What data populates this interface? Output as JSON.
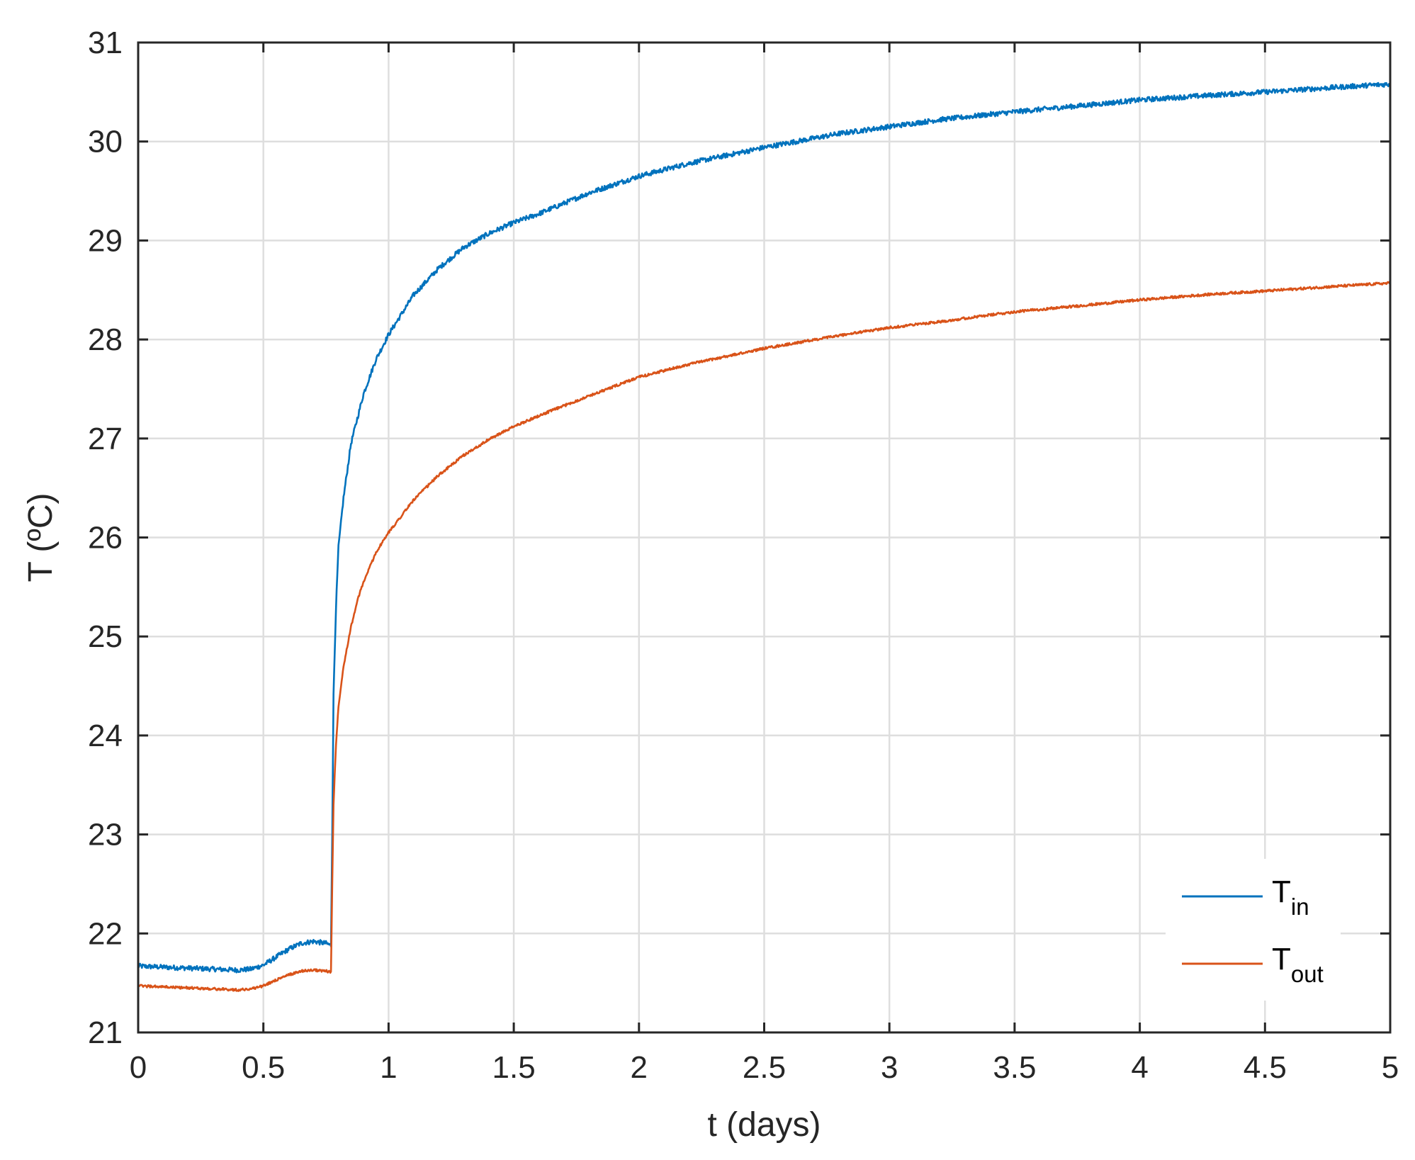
{
  "chart_data": {
    "type": "line",
    "xlabel": "t (days)",
    "ylabel": "T (ºC)",
    "xlim": [
      0,
      5
    ],
    "ylim": [
      21,
      31
    ],
    "xticks": [
      "0",
      "0.5",
      "1",
      "1.5",
      "2",
      "2.5",
      "3",
      "3.5",
      "4",
      "4.5",
      "5"
    ],
    "yticks": [
      "21",
      "22",
      "23",
      "24",
      "25",
      "26",
      "27",
      "28",
      "29",
      "30",
      "31"
    ],
    "grid": true,
    "legend_position": "bottom-right",
    "series": [
      {
        "name": "T_in",
        "legend_main": "T",
        "legend_sub": "in",
        "color": "#0072BD",
        "x": [
          0,
          0.1,
          0.2,
          0.3,
          0.4,
          0.45,
          0.5,
          0.55,
          0.6,
          0.65,
          0.7,
          0.75,
          0.77,
          0.775,
          0.78,
          0.79,
          0.8,
          0.82,
          0.85,
          0.88,
          0.9,
          0.95,
          1.0,
          1.1,
          1.2,
          1.3,
          1.4,
          1.5,
          1.6,
          1.8,
          2.0,
          2.2,
          2.5,
          2.8,
          3.0,
          3.2,
          3.5,
          3.8,
          4.0,
          4.3,
          4.5,
          4.8,
          5.0
        ],
        "y": [
          21.67,
          21.66,
          21.65,
          21.64,
          21.63,
          21.64,
          21.68,
          21.76,
          21.84,
          21.9,
          21.92,
          21.9,
          21.88,
          23.0,
          24.4,
          25.3,
          25.9,
          26.4,
          26.95,
          27.25,
          27.45,
          27.8,
          28.05,
          28.45,
          28.72,
          28.93,
          29.07,
          29.18,
          29.27,
          29.48,
          29.65,
          29.78,
          29.94,
          30.08,
          30.15,
          30.22,
          30.3,
          30.37,
          30.42,
          30.47,
          30.5,
          30.55,
          30.58
        ]
      },
      {
        "name": "T_out",
        "legend_main": "T",
        "legend_sub": "out",
        "color": "#D95319",
        "x": [
          0,
          0.1,
          0.2,
          0.3,
          0.4,
          0.45,
          0.5,
          0.55,
          0.6,
          0.65,
          0.7,
          0.75,
          0.77,
          0.775,
          0.78,
          0.79,
          0.8,
          0.82,
          0.85,
          0.88,
          0.9,
          0.95,
          1.0,
          1.1,
          1.2,
          1.3,
          1.4,
          1.5,
          1.6,
          1.8,
          2.0,
          2.2,
          2.5,
          2.8,
          3.0,
          3.2,
          3.5,
          3.8,
          4.0,
          4.3,
          4.5,
          4.8,
          5.0
        ],
        "y": [
          21.47,
          21.46,
          21.45,
          21.44,
          21.43,
          21.44,
          21.47,
          21.53,
          21.58,
          21.62,
          21.63,
          21.62,
          21.61,
          22.5,
          23.3,
          23.9,
          24.3,
          24.7,
          25.1,
          25.4,
          25.55,
          25.85,
          26.05,
          26.38,
          26.63,
          26.83,
          26.99,
          27.12,
          27.23,
          27.43,
          27.62,
          27.75,
          27.91,
          28.04,
          28.12,
          28.18,
          28.28,
          28.35,
          28.4,
          28.46,
          28.49,
          28.54,
          28.57
        ]
      }
    ]
  }
}
